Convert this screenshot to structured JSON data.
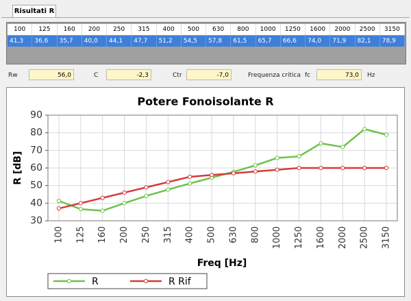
{
  "tab": "Risultati R",
  "table": {
    "header": [
      "100",
      "125",
      "160",
      "200",
      "250",
      "315",
      "400",
      "500",
      "630",
      "800",
      "1000",
      "1250",
      "1600",
      "2000",
      "2500",
      "3150"
    ],
    "rows": [
      [
        "41,3",
        "36,6",
        "35,7",
        "40,0",
        "44,1",
        "47,7",
        "51,2",
        "54,5",
        "57,8",
        "61,5",
        "65,7",
        "66,6",
        "74,0",
        "71,9",
        "82,1",
        "78,9"
      ]
    ]
  },
  "fields": {
    "rw": {
      "label": "Rw",
      "value": "56,0"
    },
    "c": {
      "label": "C",
      "value": "-2,3"
    },
    "ctr": {
      "label": "Ctr",
      "value": "-7,0"
    },
    "fc": {
      "label": "Frequenza critica",
      "symbol": "fc",
      "value": "73,0",
      "unit": "Hz"
    }
  },
  "chart_data": {
    "type": "line",
    "title": "Potere Fonoisolante R",
    "x_label": "Freq [Hz]",
    "y_label": "R [dB]",
    "categories": [
      "100",
      "125",
      "160",
      "200",
      "250",
      "315",
      "400",
      "500",
      "630",
      "800",
      "1000",
      "1250",
      "1600",
      "2000",
      "2500",
      "3150"
    ],
    "series": [
      {
        "name": "R",
        "color": "#6cc24a",
        "values": [
          41.3,
          36.6,
          35.7,
          40.0,
          44.1,
          47.7,
          51.2,
          54.5,
          57.8,
          61.5,
          65.7,
          66.6,
          74.0,
          71.9,
          82.1,
          78.9
        ]
      },
      {
        "name": "R Rif",
        "color": "#d63a3a",
        "values": [
          37,
          40,
          43,
          46,
          49,
          52,
          55,
          56,
          57,
          58,
          59,
          60,
          60,
          60,
          60,
          60
        ]
      }
    ],
    "ylim": [
      30,
      90
    ],
    "yticks": [
      30,
      40,
      50,
      60,
      70,
      80,
      90
    ],
    "grid": true,
    "legend": "bottom"
  }
}
